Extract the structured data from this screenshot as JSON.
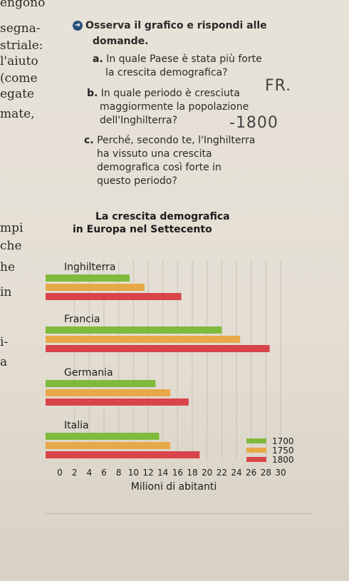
{
  "left_column": [
    "engono",
    "segna-",
    "striale:",
    "l'aiuto",
    "(come",
    "egate",
    "mate,",
    "mpi",
    "che",
    "he",
    "in",
    "i-",
    "a"
  ],
  "exercise": {
    "instruction": "Osserva il grafico e rispondi alle",
    "instruction_cont": "domande.",
    "questions": [
      {
        "letter": "a.",
        "lines": [
          "In quale Paese è stata più forte",
          "la crescita demografica?"
        ]
      },
      {
        "letter": "b.",
        "lines": [
          "In quale periodo è cresciuta",
          "maggiormente la popolazione",
          "dell'Inghilterra?"
        ]
      },
      {
        "letter": "c.",
        "lines": [
          "Perché, secondo te, l'Inghilterra",
          "ha vissuto una crescita",
          "demografica così forte in",
          "questo periodo?"
        ]
      }
    ],
    "handwritten_answers": [
      "FR.",
      "-1800"
    ]
  },
  "colors": {
    "1700": "#7fba3c",
    "1750": "#e8a847",
    "1800": "#d8444a",
    "accent": "#2a4e7a"
  },
  "chart_data": {
    "type": "bar",
    "orientation": "horizontal",
    "title": "La crescita demografica",
    "subtitle": "in Europa nel Settecento",
    "xlabel": "Milioni di abitanti",
    "ylabel": "",
    "xlim": [
      0,
      30
    ],
    "xticks": [
      0,
      2,
      4,
      6,
      8,
      10,
      12,
      14,
      16,
      18,
      20,
      22,
      24,
      26,
      28,
      30
    ],
    "grid": true,
    "legend": "bottom-right",
    "categories": [
      "Inghilterra",
      "Francia",
      "Germania",
      "Italia"
    ],
    "series": [
      {
        "name": "1700",
        "values": [
          9.5,
          22,
          13,
          13.5
        ]
      },
      {
        "name": "1750",
        "values": [
          11.5,
          24.5,
          15,
          15
        ]
      },
      {
        "name": "1800",
        "values": [
          16.5,
          28.5,
          17.5,
          19
        ]
      }
    ]
  }
}
